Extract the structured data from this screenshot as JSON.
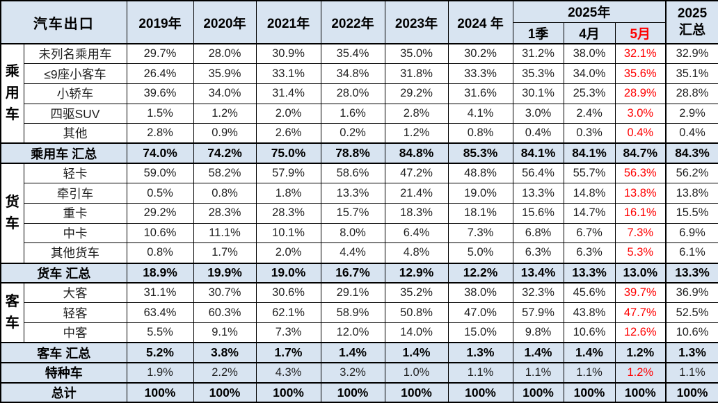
{
  "colors": {
    "header_bg": "#d8e4f1",
    "red": "#ff0000",
    "border": "#000000",
    "text": "#1f1f1f"
  },
  "chart_data": {
    "type": "table",
    "title": "汽车出口",
    "red_column_index": 8,
    "header": {
      "corner": "汽车出口",
      "years": [
        "2019年",
        "2020年",
        "2021年",
        "2022年",
        "2023年",
        "2024 年"
      ],
      "y2025_label": "2025年",
      "y2025_sub": [
        "1季",
        "4月",
        "5月"
      ],
      "total_line1": "2025",
      "total_line2": "汇总"
    },
    "groups": [
      {
        "label": "乘用车",
        "start": 0,
        "span": 5
      },
      {
        "label": "货车",
        "start": 6,
        "span": 5
      },
      {
        "label": "客车",
        "start": 12,
        "span": 3
      }
    ],
    "rows": [
      {
        "label": "未列名乘用车",
        "kind": "data",
        "values": [
          "29.7%",
          "28.0%",
          "30.9%",
          "35.4%",
          "35.0%",
          "30.2%",
          "31.2%",
          "38.0%",
          "32.1%",
          "32.9%"
        ]
      },
      {
        "label": "≤9座小客车",
        "kind": "data",
        "values": [
          "26.4%",
          "35.9%",
          "33.1%",
          "34.8%",
          "31.8%",
          "33.3%",
          "35.3%",
          "34.0%",
          "35.6%",
          "35.1%"
        ]
      },
      {
        "label": "小轿车",
        "kind": "data",
        "values": [
          "39.6%",
          "34.0%",
          "31.4%",
          "28.0%",
          "29.2%",
          "31.6%",
          "30.1%",
          "25.3%",
          "28.9%",
          "28.8%"
        ]
      },
      {
        "label": "四驱SUV",
        "kind": "data",
        "values": [
          "1.5%",
          "1.2%",
          "2.0%",
          "1.6%",
          "2.8%",
          "4.1%",
          "3.0%",
          "2.4%",
          "3.0%",
          "2.9%"
        ]
      },
      {
        "label": "其他",
        "kind": "data",
        "values": [
          "2.8%",
          "0.9%",
          "2.6%",
          "0.2%",
          "1.2%",
          "0.8%",
          "0.4%",
          "0.3%",
          "0.4%",
          "0.4%"
        ]
      },
      {
        "label": "乘用车 汇总",
        "kind": "summary",
        "values": [
          "74.0%",
          "74.2%",
          "75.0%",
          "78.8%",
          "84.8%",
          "85.3%",
          "84.1%",
          "84.1%",
          "84.7%",
          "84.3%"
        ]
      },
      {
        "label": "轻卡",
        "kind": "data",
        "values": [
          "59.0%",
          "58.2%",
          "57.9%",
          "58.6%",
          "47.2%",
          "48.8%",
          "56.4%",
          "55.7%",
          "56.3%",
          "56.2%"
        ]
      },
      {
        "label": "牵引车",
        "kind": "data",
        "values": [
          "0.5%",
          "0.8%",
          "1.8%",
          "13.3%",
          "21.4%",
          "19.0%",
          "13.3%",
          "14.8%",
          "13.8%",
          "13.8%"
        ]
      },
      {
        "label": "重卡",
        "kind": "data",
        "values": [
          "29.2%",
          "28.3%",
          "28.3%",
          "15.7%",
          "18.3%",
          "18.1%",
          "15.6%",
          "14.7%",
          "16.1%",
          "15.5%"
        ]
      },
      {
        "label": "中卡",
        "kind": "data",
        "values": [
          "10.6%",
          "11.1%",
          "10.1%",
          "8.0%",
          "6.4%",
          "7.3%",
          "6.8%",
          "6.7%",
          "7.3%",
          "6.9%"
        ]
      },
      {
        "label": "其他货车",
        "kind": "data",
        "values": [
          "0.8%",
          "1.7%",
          "2.0%",
          "4.4%",
          "4.8%",
          "5.0%",
          "6.3%",
          "6.3%",
          "5.3%",
          "6.1%"
        ]
      },
      {
        "label": "货车 汇总",
        "kind": "summary",
        "values": [
          "18.9%",
          "19.9%",
          "19.0%",
          "16.7%",
          "12.9%",
          "12.2%",
          "13.4%",
          "13.3%",
          "13.0%",
          "13.3%"
        ]
      },
      {
        "label": "大客",
        "kind": "data",
        "values": [
          "31.1%",
          "30.7%",
          "30.6%",
          "29.1%",
          "35.2%",
          "38.0%",
          "32.3%",
          "45.6%",
          "39.7%",
          "36.9%"
        ]
      },
      {
        "label": "轻客",
        "kind": "data",
        "values": [
          "63.4%",
          "60.3%",
          "62.1%",
          "58.9%",
          "50.8%",
          "47.0%",
          "57.9%",
          "43.8%",
          "47.7%",
          "52.5%"
        ]
      },
      {
        "label": "中客",
        "kind": "data",
        "values": [
          "5.5%",
          "9.1%",
          "7.3%",
          "12.0%",
          "14.0%",
          "15.0%",
          "9.8%",
          "10.6%",
          "12.6%",
          "10.6%"
        ]
      },
      {
        "label": "客车 汇总",
        "kind": "summary",
        "values": [
          "5.2%",
          "3.8%",
          "1.7%",
          "1.4%",
          "1.4%",
          "1.3%",
          "1.4%",
          "1.4%",
          "1.2%",
          "1.3%"
        ]
      },
      {
        "label": "特种车",
        "kind": "special",
        "values": [
          "1.9%",
          "2.2%",
          "4.3%",
          "3.2%",
          "1.0%",
          "1.1%",
          "1.1%",
          "1.1%",
          "1.2%",
          "1.1%"
        ]
      },
      {
        "label": "总计",
        "kind": "total",
        "values": [
          "100%",
          "100%",
          "100%",
          "100%",
          "100%",
          "100%",
          "100%",
          "100%",
          "100%",
          "100%"
        ]
      }
    ]
  }
}
